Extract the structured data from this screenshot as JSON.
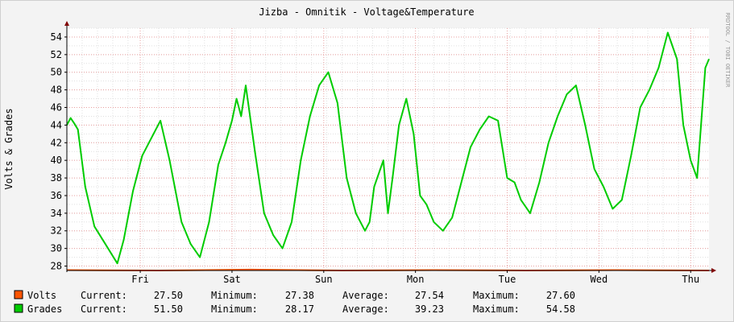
{
  "chart_data": {
    "type": "line",
    "title": "Jizba - Omnitik - Voltage&Temperature",
    "ylabel": "Volts & Grades",
    "watermark": "RRDTOOL / TOBI OETIKER",
    "ylim": [
      27.5,
      55
    ],
    "yticks": [
      28,
      30,
      32,
      34,
      36,
      38,
      40,
      42,
      44,
      46,
      48,
      50,
      52,
      54
    ],
    "xlim": [
      0,
      7
    ],
    "x_unit": "days from start of window (Thu, week shown)",
    "xticks": [
      {
        "label": "Fri",
        "x": 0.8
      },
      {
        "label": "Sat",
        "x": 1.8
      },
      {
        "label": "Sun",
        "x": 2.8
      },
      {
        "label": "Mon",
        "x": 3.8
      },
      {
        "label": "Tue",
        "x": 4.8
      },
      {
        "label": "Wed",
        "x": 5.8
      },
      {
        "label": "Thu",
        "x": 6.8
      }
    ],
    "colors": {
      "background": "#f3f3f3",
      "canvas": "#ffffff",
      "grid_minor": "#e0e0e0",
      "grid_major": "#e8a0a0",
      "axis": "#000000",
      "arrow": "#800000"
    },
    "series": [
      {
        "name": "Volts",
        "color": "#ff5500",
        "stroke_width": 2,
        "stats": {
          "current": "27.50",
          "minimum": "27.38",
          "average": "27.54",
          "maximum": "27.60"
        },
        "x": [
          0,
          1,
          2,
          3,
          4,
          5,
          6,
          7
        ],
        "values": [
          27.55,
          27.5,
          27.6,
          27.5,
          27.55,
          27.5,
          27.55,
          27.5
        ]
      },
      {
        "name": "Grades",
        "color": "#00cc00",
        "stroke_width": 2,
        "stats": {
          "current": "51.50",
          "minimum": "28.17",
          "average": "39.23",
          "maximum": "54.58"
        },
        "x": [
          0,
          0.04,
          0.08,
          0.12,
          0.2,
          0.3,
          0.42,
          0.55,
          0.62,
          0.72,
          0.82,
          0.92,
          1.02,
          1.12,
          1.25,
          1.35,
          1.45,
          1.55,
          1.65,
          1.73,
          1.8,
          1.85,
          1.9,
          1.95,
          2.05,
          2.15,
          2.25,
          2.35,
          2.45,
          2.55,
          2.65,
          2.75,
          2.85,
          2.95,
          3.05,
          3.15,
          3.25,
          3.3,
          3.35,
          3.45,
          3.5,
          3.55,
          3.62,
          3.7,
          3.78,
          3.85,
          3.92,
          4.0,
          4.1,
          4.2,
          4.3,
          4.4,
          4.5,
          4.6,
          4.7,
          4.8,
          4.88,
          4.95,
          5.05,
          5.15,
          5.25,
          5.35,
          5.45,
          5.55,
          5.65,
          5.75,
          5.85,
          5.95,
          6.05,
          6.15,
          6.25,
          6.35,
          6.45,
          6.55,
          6.65,
          6.72,
          6.8,
          6.87,
          6.92,
          6.96,
          7.0
        ],
        "values": [
          44.0,
          44.8,
          44.2,
          43.5,
          37.0,
          32.5,
          30.5,
          28.3,
          31.0,
          36.5,
          40.5,
          42.5,
          44.5,
          40.0,
          33.0,
          30.5,
          29.0,
          33.0,
          39.5,
          42.0,
          44.5,
          47.0,
          45.0,
          48.5,
          41.0,
          34.0,
          31.5,
          30.0,
          33.0,
          40.0,
          45.0,
          48.5,
          50.0,
          46.5,
          38.0,
          34.0,
          32.0,
          33.0,
          37.0,
          40.0,
          34.0,
          38.0,
          44.0,
          47.0,
          43.0,
          36.0,
          35.0,
          33.0,
          32.0,
          33.5,
          37.5,
          41.5,
          43.5,
          45.0,
          44.5,
          38.0,
          37.5,
          35.5,
          34.0,
          37.5,
          42.0,
          45.0,
          47.5,
          48.5,
          44.0,
          39.0,
          37.0,
          34.5,
          35.5,
          40.5,
          46.0,
          48.0,
          50.5,
          54.5,
          51.5,
          44.0,
          40.0,
          38.0,
          45.0,
          50.5,
          51.5
        ]
      }
    ]
  }
}
